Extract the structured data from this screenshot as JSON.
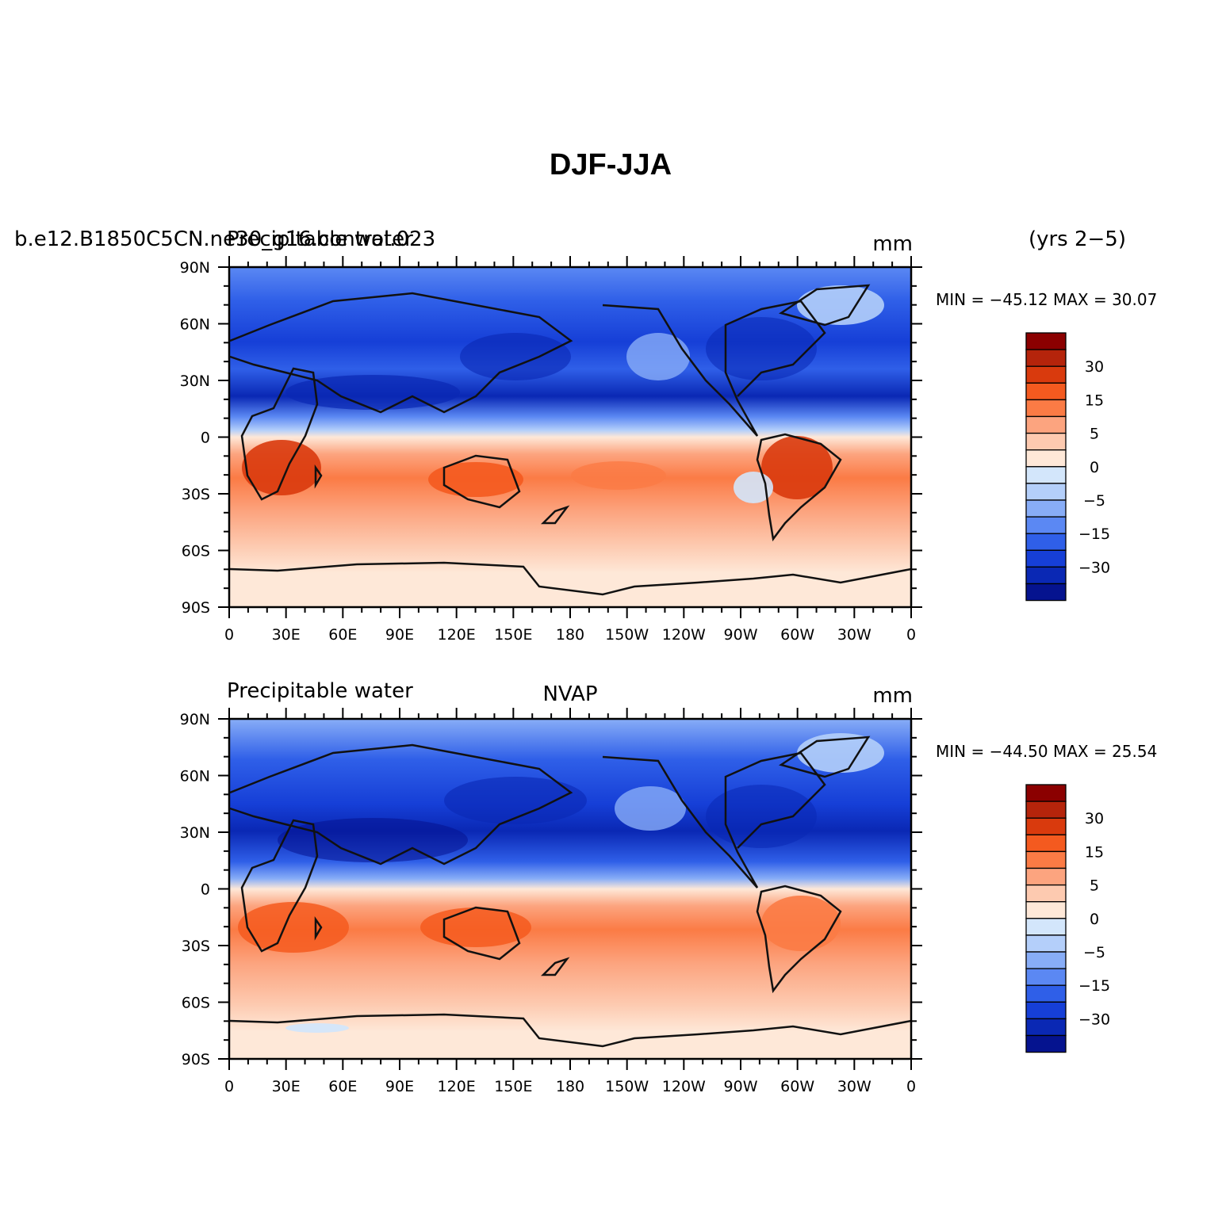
{
  "title": "DJF-JJA",
  "period": "(yrs 2−5)",
  "units": "mm",
  "colors": {
    "frame": "#000000",
    "coast": "#111111",
    "levels": [
      "#8b0000",
      "#b5240b",
      "#d93a0d",
      "#f45a1f",
      "#fb7b45",
      "#fca47f",
      "#fdcab0",
      "#fee8d8",
      "#d3e6fb",
      "#b4cffa",
      "#88adf7",
      "#5b88f3",
      "#2f5fe8",
      "#163fd7",
      "#0a28b4",
      "#05138f"
    ]
  },
  "chart_data": [
    {
      "type": "heatmap",
      "id": "model",
      "left_label": "b.e12.B1850C5CN.ne30_g16.control.023",
      "left_label_overlay": "Precipitable water",
      "center_label": "",
      "right_label": "mm",
      "stats_text": "MIN = −45.12 MAX =  30.07",
      "min": -45.12,
      "max": 30.07,
      "x_ticks": [
        "0",
        "30E",
        "60E",
        "90E",
        "120E",
        "150E",
        "180",
        "150W",
        "120W",
        "90W",
        "60W",
        "30W",
        "0"
      ],
      "y_ticks": [
        "90N",
        "60N",
        "30N",
        "0",
        "30S",
        "60S",
        "90S"
      ],
      "xlim": [
        0,
        360
      ],
      "ylim": [
        -90,
        90
      ],
      "colorbar_labels": [
        "30",
        "15",
        "5",
        "0",
        "−5",
        "−15",
        "−30"
      ]
    },
    {
      "type": "heatmap",
      "id": "obs",
      "left_label": "Precipitable water",
      "left_label_overlay": "",
      "center_label": "NVAP",
      "right_label": "mm",
      "stats_text": "MIN = −44.50 MAX =  25.54",
      "min": -44.5,
      "max": 25.54,
      "x_ticks": [
        "0",
        "30E",
        "60E",
        "90E",
        "120E",
        "150E",
        "180",
        "150W",
        "120W",
        "90W",
        "60W",
        "30W",
        "0"
      ],
      "y_ticks": [
        "90N",
        "60N",
        "30N",
        "0",
        "30S",
        "60S",
        "90S"
      ],
      "xlim": [
        0,
        360
      ],
      "ylim": [
        -90,
        90
      ],
      "colorbar_labels": [
        "30",
        "15",
        "5",
        "0",
        "−5",
        "−15",
        "−30"
      ]
    }
  ]
}
